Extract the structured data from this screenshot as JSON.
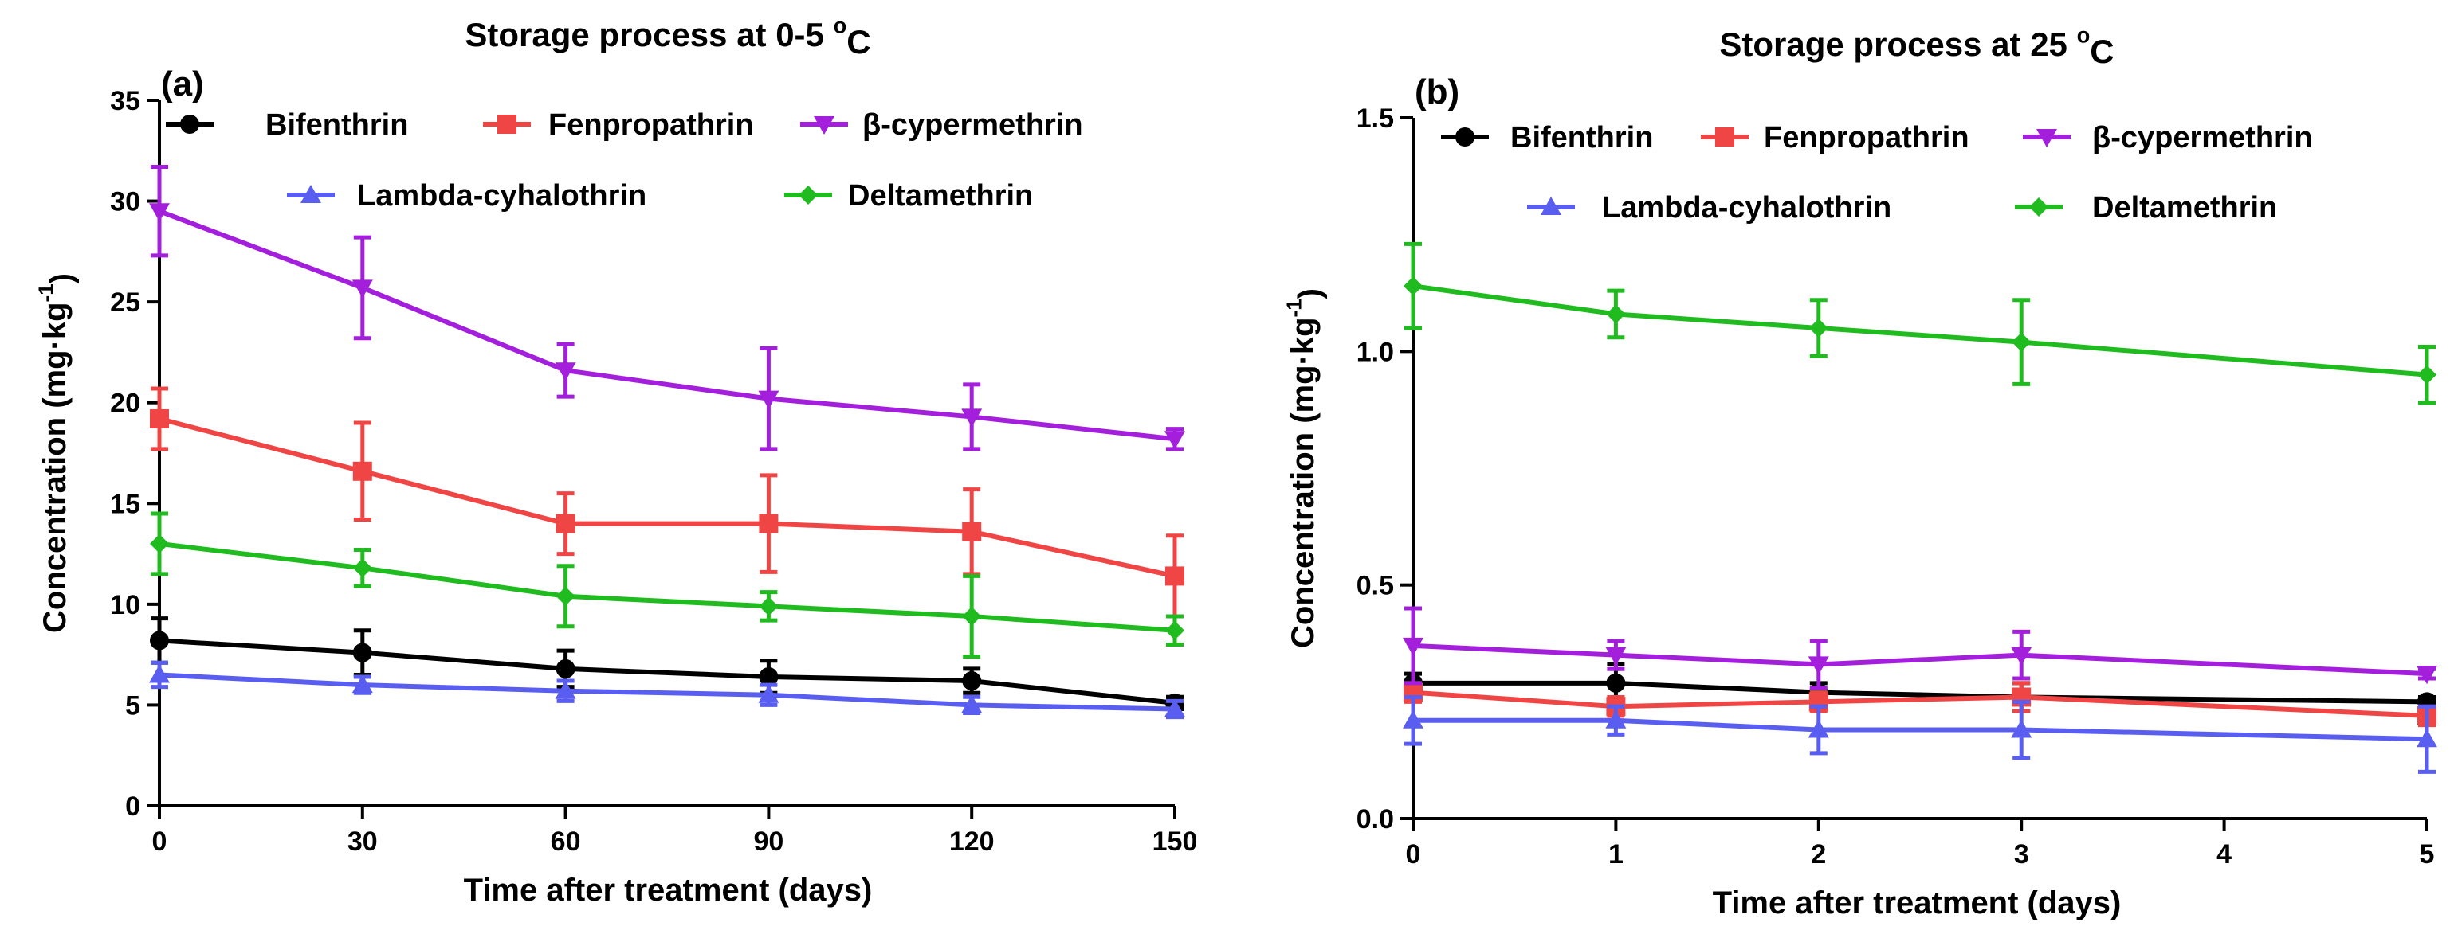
{
  "chart_data": [
    {
      "panel": "(a)",
      "type": "line",
      "title_main": "Storage process at 0-5 ",
      "title_sup": "o",
      "title_tail": "C",
      "xlabel": "Time after treatment (days)",
      "ylabel_main": "Concentration (mg·kg",
      "ylabel_sup": "-1",
      "ylabel_tail": ")",
      "x": [
        0,
        30,
        60,
        90,
        120,
        150
      ],
      "xlim": [
        0,
        150
      ],
      "ylim": [
        0,
        35
      ],
      "xticks": [
        "0",
        "30",
        "60",
        "90",
        "120",
        "150"
      ],
      "yticks": [
        "0",
        "5",
        "10",
        "15",
        "20",
        "25",
        "30",
        "35"
      ],
      "series": [
        {
          "name": "Bifenthrin",
          "color": "#000000",
          "marker": "circle",
          "values": [
            8.2,
            7.6,
            6.8,
            6.4,
            6.2,
            5.1
          ],
          "errors": [
            1.1,
            1.1,
            0.9,
            0.8,
            0.6,
            0.3
          ]
        },
        {
          "name": "Fenpropathrin",
          "color": "#f04545",
          "marker": "square",
          "values": [
            19.2,
            16.6,
            14.0,
            14.0,
            13.6,
            11.4
          ],
          "errors": [
            1.5,
            2.4,
            1.5,
            2.4,
            2.1,
            2.0
          ]
        },
        {
          "name": "β-cypermethrin",
          "color": "#a31fdc",
          "marker": "triangle-down",
          "values": [
            29.5,
            25.7,
            21.6,
            20.2,
            19.3,
            18.2
          ],
          "errors": [
            2.2,
            2.5,
            1.3,
            2.5,
            1.6,
            0.5
          ]
        },
        {
          "name": "Lambda-cyhalothrin",
          "color": "#5a5ef0",
          "marker": "triangle-up",
          "values": [
            6.5,
            6.0,
            5.7,
            5.5,
            5.0,
            4.8
          ],
          "errors": [
            0.6,
            0.4,
            0.5,
            0.5,
            0.4,
            0.4
          ]
        },
        {
          "name": "Deltamethrin",
          "color": "#1fbb1f",
          "marker": "diamond",
          "values": [
            13.0,
            11.8,
            10.4,
            9.9,
            9.4,
            8.7
          ],
          "errors": [
            1.5,
            0.9,
            1.5,
            0.7,
            2.0,
            0.7
          ]
        }
      ]
    },
    {
      "panel": "(b)",
      "type": "line",
      "title_main": "Storage process at 25 ",
      "title_sup": "o",
      "title_tail": "C",
      "xlabel": "Time after treatment (days)",
      "ylabel_main": "Concentration (mg·kg",
      "ylabel_sup": "-1",
      "ylabel_tail": ")",
      "x": [
        0,
        1,
        2,
        3,
        5
      ],
      "xlim": [
        0,
        5
      ],
      "ylim": [
        0,
        1.5
      ],
      "xticks": [
        "0",
        "1",
        "2",
        "3",
        "4",
        "5"
      ],
      "yticks": [
        "0.0",
        "0.5",
        "1.0",
        "1.5"
      ],
      "series": [
        {
          "name": "Bifenthrin",
          "color": "#000000",
          "marker": "circle",
          "values": [
            0.29,
            0.29,
            0.27,
            0.26,
            0.25
          ],
          "errors": [
            0.02,
            0.04,
            0.02,
            0.03,
            0.01
          ]
        },
        {
          "name": "Fenpropathrin",
          "color": "#f04545",
          "marker": "square",
          "values": [
            0.27,
            0.24,
            0.25,
            0.26,
            0.22
          ],
          "errors": [
            0.02,
            0.02,
            0.02,
            0.03,
            0.02
          ]
        },
        {
          "name": "β-cypermethrin",
          "color": "#a31fdc",
          "marker": "triangle-down",
          "values": [
            0.37,
            0.35,
            0.33,
            0.35,
            0.31
          ],
          "errors": [
            0.08,
            0.03,
            0.05,
            0.05,
            0.01
          ]
        },
        {
          "name": "Lambda-cyhalothrin",
          "color": "#5a5ef0",
          "marker": "triangle-up",
          "values": [
            0.21,
            0.21,
            0.19,
            0.19,
            0.17
          ],
          "errors": [
            0.05,
            0.03,
            0.05,
            0.06,
            0.07
          ]
        },
        {
          "name": "Deltamethrin",
          "color": "#1fbb1f",
          "marker": "diamond",
          "values": [
            1.14,
            1.08,
            1.05,
            1.02,
            0.95
          ],
          "errors": [
            0.09,
            0.05,
            0.06,
            0.09,
            0.06
          ]
        }
      ]
    }
  ]
}
